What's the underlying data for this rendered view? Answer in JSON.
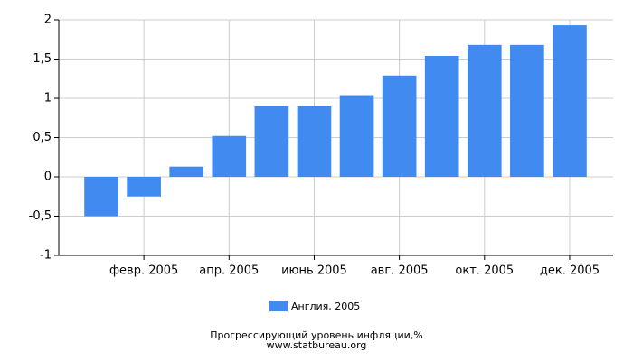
{
  "chart_data": {
    "type": "bar",
    "title": "Прогрессирующий уровень инфляции,%",
    "subtitle": "www.statbureau.org",
    "categories": [
      null,
      "февр. 2005",
      null,
      "апр. 2005",
      null,
      "июнь 2005",
      null,
      "авг. 2005",
      null,
      "окт. 2005",
      null,
      "дек. 2005"
    ],
    "series": [
      {
        "name": "Англия, 2005",
        "color": "#418bf0",
        "values": [
          -0.5,
          -0.25,
          0.13,
          0.52,
          0.9,
          0.9,
          1.04,
          1.29,
          1.54,
          1.68,
          1.68,
          1.93
        ]
      }
    ],
    "ylim": [
      -1,
      2
    ],
    "yticks": [
      -1,
      {
        "value": -0.5,
        "label": "-0,5"
      },
      0,
      {
        "value": 0.5,
        "label": "0,5"
      },
      1,
      {
        "value": 1.5,
        "label": "1,5"
      },
      2
    ],
    "grid": true
  }
}
